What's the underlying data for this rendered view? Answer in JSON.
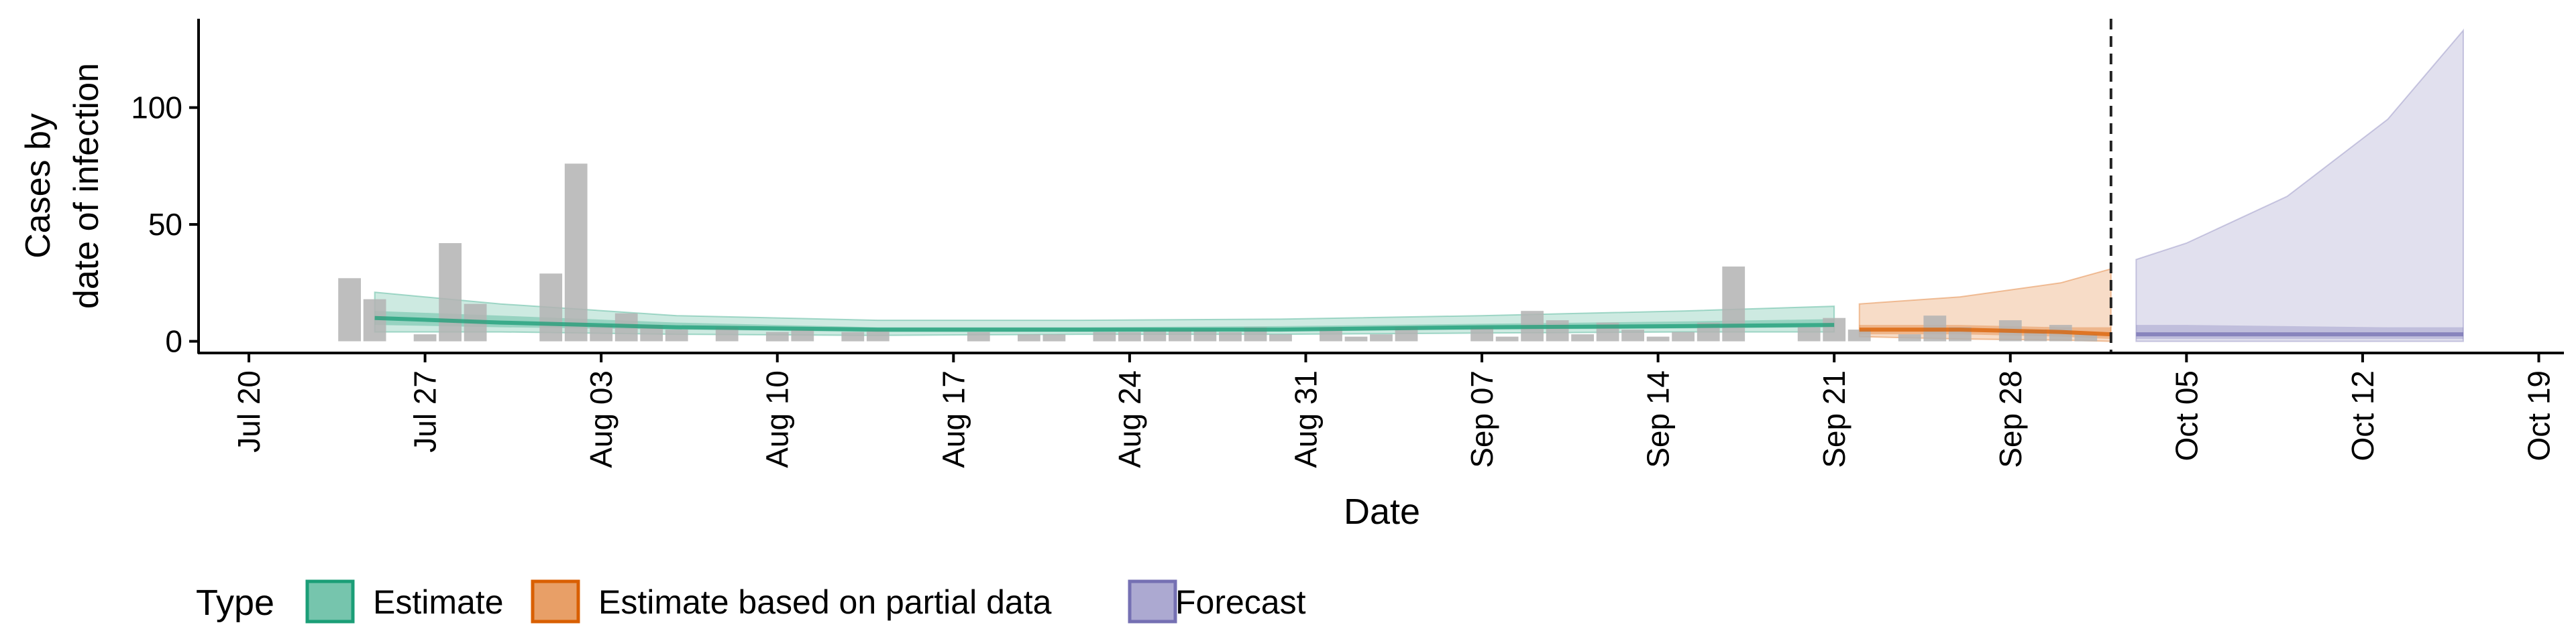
{
  "chart_data": {
    "type": "bar",
    "xlabel": "Date",
    "ylabel_lines": [
      "Cases by",
      "date of infection"
    ],
    "ylim": [
      -5,
      138
    ],
    "yticks": [
      0,
      50,
      100
    ],
    "xlim": [
      "2020-07-18",
      "2020-10-20"
    ],
    "xticks": [
      {
        "date": "2020-07-20",
        "label": "Jul 20"
      },
      {
        "date": "2020-07-27",
        "label": "Jul 27"
      },
      {
        "date": "2020-08-03",
        "label": "Aug 03"
      },
      {
        "date": "2020-08-10",
        "label": "Aug 10"
      },
      {
        "date": "2020-08-17",
        "label": "Aug 17"
      },
      {
        "date": "2020-08-24",
        "label": "Aug 24"
      },
      {
        "date": "2020-08-31",
        "label": "Aug 31"
      },
      {
        "date": "2020-09-07",
        "label": "Sep 07"
      },
      {
        "date": "2020-09-14",
        "label": "Sep 14"
      },
      {
        "date": "2020-09-21",
        "label": "Sep 21"
      },
      {
        "date": "2020-09-28",
        "label": "Sep 28"
      },
      {
        "date": "2020-10-05",
        "label": "Oct 05"
      },
      {
        "date": "2020-10-12",
        "label": "Oct 12"
      },
      {
        "date": "2020-10-19",
        "label": "Oct 19"
      }
    ],
    "vline_date": "2020-10-02",
    "observed_cases": {
      "start_date": "2020-07-24",
      "values": [
        27,
        18,
        0,
        3,
        42,
        16,
        0,
        0,
        29,
        76,
        7,
        12,
        7,
        5,
        0,
        6,
        0,
        4,
        5,
        0,
        4,
        5,
        0,
        0,
        0,
        4,
        0,
        3,
        3,
        0,
        4,
        4,
        5,
        5,
        5,
        4,
        6,
        3,
        0,
        6,
        2,
        3,
        6,
        0,
        0,
        6,
        2,
        13,
        9,
        3,
        8,
        5,
        2,
        4,
        8,
        32,
        0,
        0,
        6,
        10,
        5,
        0,
        3,
        11,
        6,
        0,
        9,
        5,
        7,
        3
      ]
    },
    "legend_title": "Type",
    "legend_position": "bottom",
    "colors": {
      "bars": "#b3b3b3",
      "estimate": "#1b9e77",
      "partial": "#d95f02",
      "forecast": "#7570b3"
    },
    "series": [
      {
        "name": "Estimate",
        "dates": [
          "2020-07-25",
          "2020-07-30",
          "2020-08-06",
          "2020-08-14",
          "2020-08-22",
          "2020-08-30",
          "2020-09-07",
          "2020-09-15",
          "2020-09-21"
        ],
        "median": [
          10,
          8,
          6,
          5,
          5,
          5,
          6,
          6.5,
          7
        ],
        "lower50": [
          7,
          6,
          5,
          4,
          4,
          4.5,
          5,
          5.5,
          6
        ],
        "upper50": [
          13,
          11,
          8,
          6,
          6,
          6.5,
          7.5,
          8.5,
          9.5
        ],
        "lower90": [
          4,
          4,
          3,
          2.5,
          3,
          3,
          3.5,
          4,
          4
        ],
        "upper90": [
          21,
          16,
          11,
          9,
          9,
          9.5,
          11,
          13,
          15
        ]
      },
      {
        "name": "Estimate based on partial data",
        "dates": [
          "2020-09-22",
          "2020-09-26",
          "2020-09-30",
          "2020-10-02"
        ],
        "median": [
          5,
          5,
          4,
          3
        ],
        "lower50": [
          3,
          3,
          2,
          1
        ],
        "upper50": [
          7,
          7,
          6,
          6
        ],
        "lower90": [
          2,
          1,
          0.5,
          0
        ],
        "upper90": [
          16,
          19,
          25,
          31
        ]
      },
      {
        "name": "Forecast",
        "dates": [
          "2020-10-03",
          "2020-10-05",
          "2020-10-09",
          "2020-10-13",
          "2020-10-16"
        ],
        "median": [
          3,
          3,
          3,
          3,
          3
        ],
        "lower50": [
          1,
          1,
          1,
          1,
          1
        ],
        "upper50": [
          7,
          7,
          6.5,
          6,
          6
        ],
        "lower90": [
          0,
          0,
          0,
          0,
          0
        ],
        "upper90": [
          35,
          42,
          62,
          95,
          133
        ]
      }
    ]
  }
}
